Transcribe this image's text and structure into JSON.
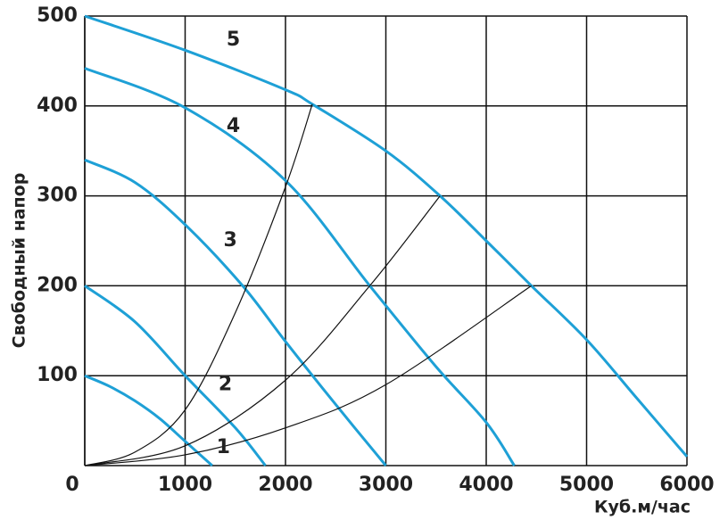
{
  "chart_data": {
    "type": "line",
    "x_label": "Куб.м/час",
    "y_label": "Свободный напор",
    "xlim": [
      0,
      6000
    ],
    "ylim": [
      0,
      500
    ],
    "xticks": [
      0,
      1000,
      2000,
      3000,
      4000,
      5000,
      6000
    ],
    "yticks": [
      100,
      200,
      300,
      400,
      500
    ],
    "grid": true,
    "series": [
      {
        "color": "#1ea0d6",
        "x": [
          0,
          250,
          500,
          750,
          1000,
          1270
        ],
        "values": [
          100,
          88,
          72,
          52,
          27,
          0
        ]
      },
      {
        "color": "#1ea0d6",
        "x": [
          0,
          500,
          1000,
          1500,
          1800
        ],
        "values": [
          200,
          160,
          100,
          42,
          0
        ]
      },
      {
        "color": "#1ea0d6",
        "x": [
          0,
          500,
          1000,
          1573,
          2000,
          2500,
          3000
        ],
        "values": [
          340,
          315,
          268,
          200,
          138,
          68,
          0
        ]
      },
      {
        "color": "#1ea0d6",
        "x": [
          0,
          1000,
          2000,
          2840,
          3500,
          4000,
          4280
        ],
        "values": [
          442,
          398,
          317,
          200,
          110,
          48,
          0
        ]
      },
      {
        "color": "#1ea0d6",
        "x": [
          0,
          1000,
          2000,
          2267,
          3000,
          3540,
          4000,
          4450,
          5000,
          5500,
          6000
        ],
        "values": [
          500,
          462,
          418,
          402,
          350,
          300,
          250,
          200,
          140,
          75,
          10
        ]
      },
      {
        "color": "#111111",
        "x": [
          0,
          500,
          1000,
          1500,
          2000,
          2267
        ],
        "values": [
          0,
          15,
          62,
          170,
          310,
          402
        ]
      },
      {
        "color": "#111111",
        "x": [
          0,
          1000,
          2000,
          2840,
          3540
        ],
        "values": [
          0,
          22,
          95,
          200,
          300
        ]
      },
      {
        "color": "#111111",
        "x": [
          0,
          1000,
          2000,
          3000,
          4450
        ],
        "values": [
          0,
          12,
          42,
          90,
          200
        ]
      }
    ],
    "annotations": [
      {
        "text": "5",
        "x": 1480,
        "y": 473
      },
      {
        "text": "4",
        "x": 1480,
        "y": 377
      },
      {
        "text": "3",
        "x": 1450,
        "y": 250
      },
      {
        "text": "2",
        "x": 1400,
        "y": 90
      },
      {
        "text": "1",
        "x": 1380,
        "y": 20
      }
    ]
  }
}
